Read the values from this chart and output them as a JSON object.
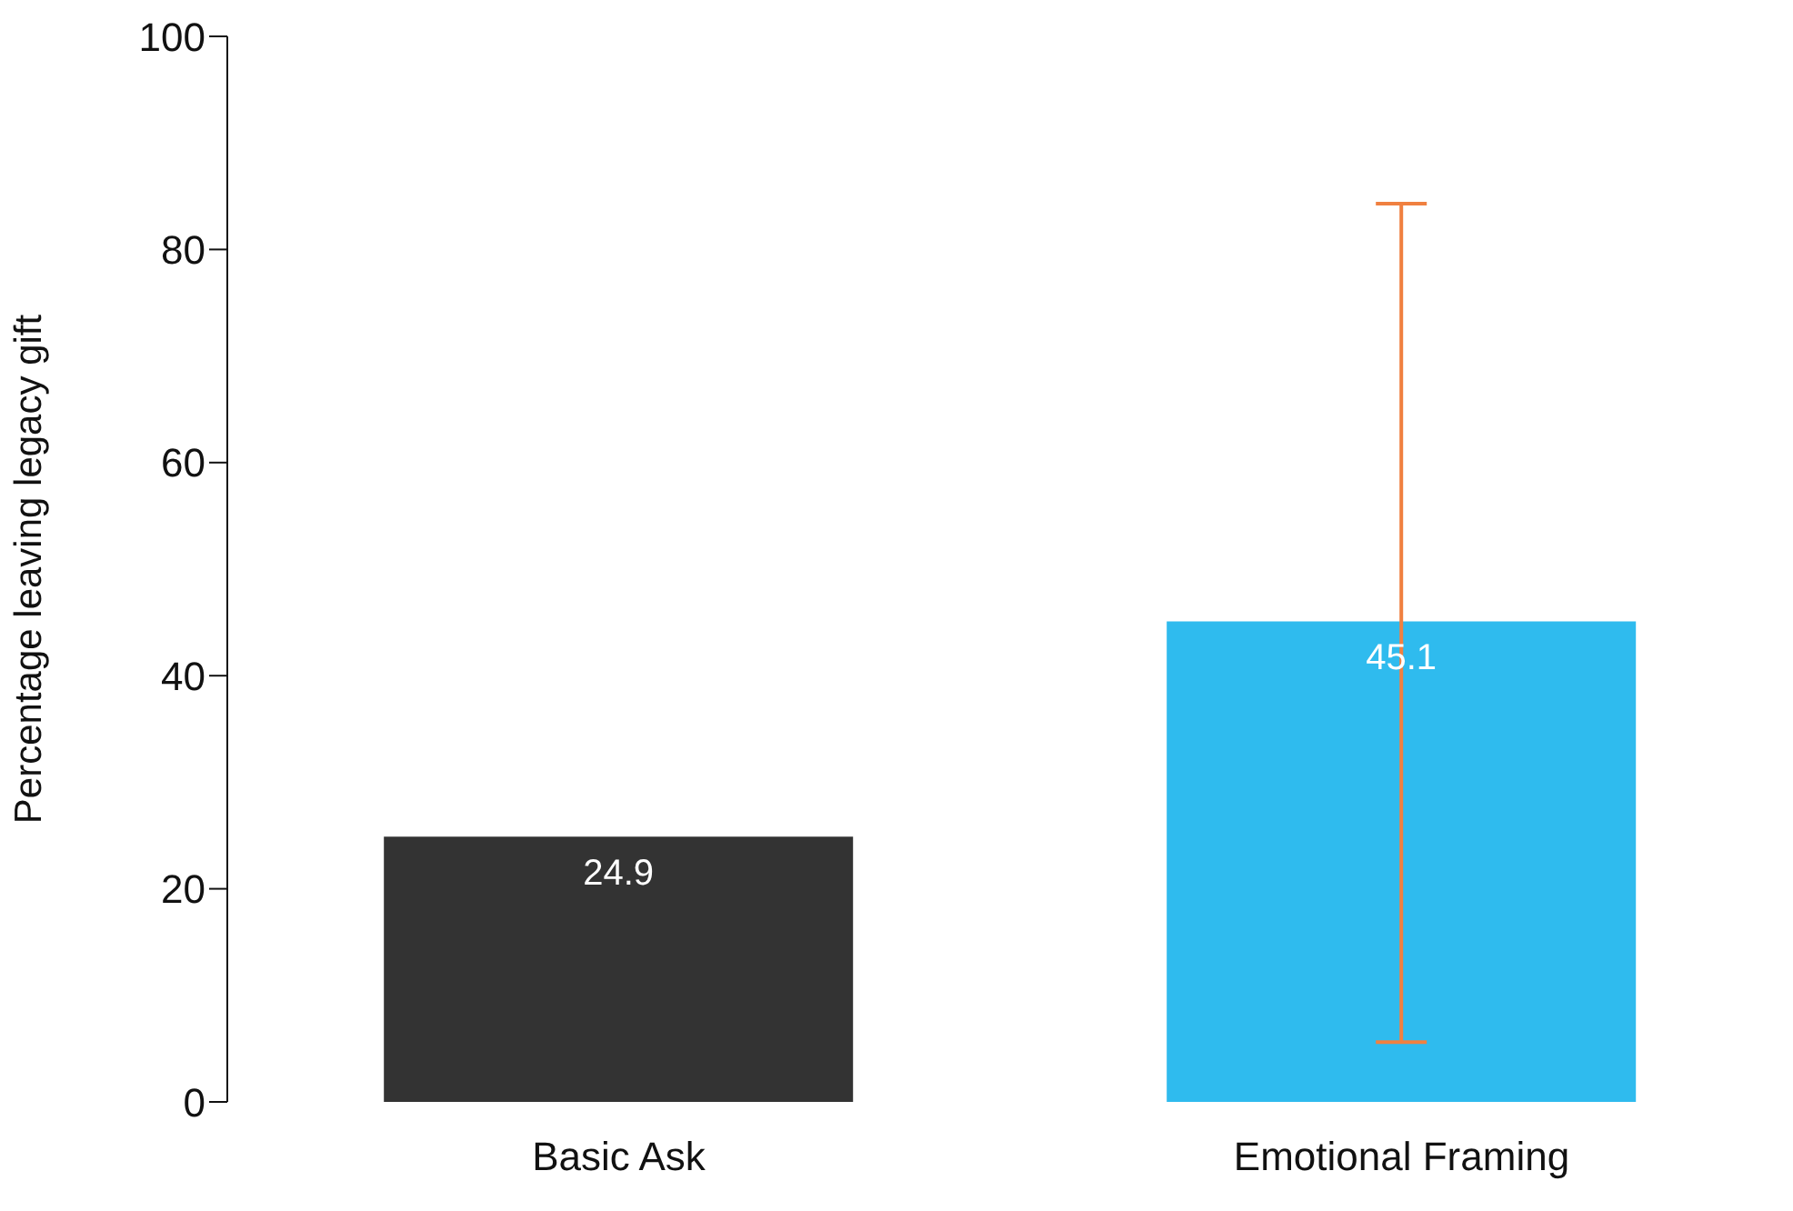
{
  "chart_data": {
    "type": "bar",
    "ylabel": "Percentage leaving legacy gift",
    "categories": [
      "Basic Ask",
      "Emotional Framing"
    ],
    "values": [
      24.9,
      45.1
    ],
    "colors": [
      "#333333",
      "#2fbbee"
    ],
    "errors": [
      null,
      [
        5.6,
        84.3
      ]
    ],
    "ylim": [
      0,
      100
    ],
    "yticks": [
      0,
      20,
      40,
      60,
      80,
      100
    ],
    "data_labels": true,
    "grid": false,
    "legend": false
  }
}
